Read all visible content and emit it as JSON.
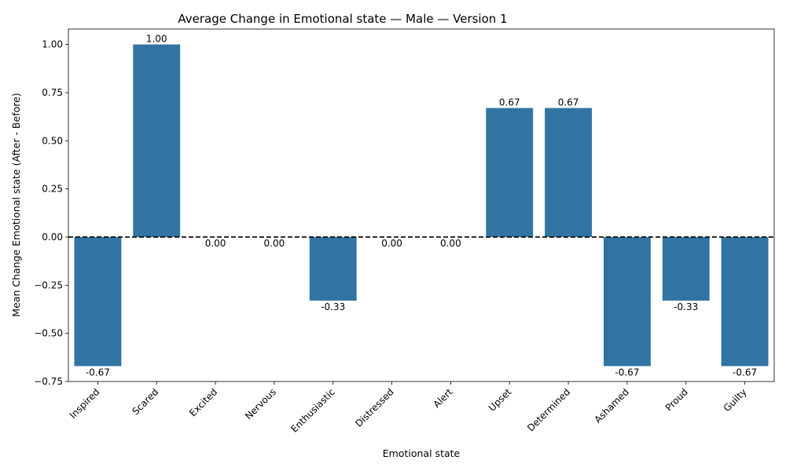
{
  "chart_data": {
    "type": "bar",
    "title": "Average Change in Emotional state — Male — Version 1",
    "xlabel": "Emotional state",
    "ylabel": "Mean Change Emotional state (After - Before)",
    "categories": [
      "Inspired",
      "Scared",
      "Excited",
      "Nervous",
      "Enthusiastic",
      "Distressed",
      "Alert",
      "Upset",
      "Determined",
      "Ashamed",
      "Proud",
      "Guilty"
    ],
    "values": [
      -0.67,
      1.0,
      0.0,
      0.0,
      -0.33,
      0.0,
      0.0,
      0.67,
      0.67,
      -0.67,
      -0.33,
      -0.67
    ],
    "data_labels": [
      "-0.67",
      "1.00",
      "0.00",
      "0.00",
      "-0.33",
      "0.00",
      "0.00",
      "0.67",
      "0.67",
      "-0.67",
      "-0.33",
      "-0.67"
    ],
    "yticks": [
      -0.75,
      -0.5,
      -0.25,
      0.0,
      0.25,
      0.5,
      0.75,
      1.0
    ],
    "ytick_labels": [
      "−0.75",
      "−0.50",
      "−0.25",
      "0.00",
      "0.25",
      "0.50",
      "0.75",
      "1.00"
    ],
    "ylim": [
      -0.75,
      1.08
    ],
    "bar_color": "#3274a1",
    "reference_line": {
      "y": 0,
      "style": "dashed",
      "color": "#000000"
    },
    "grid": false,
    "legend": false
  }
}
